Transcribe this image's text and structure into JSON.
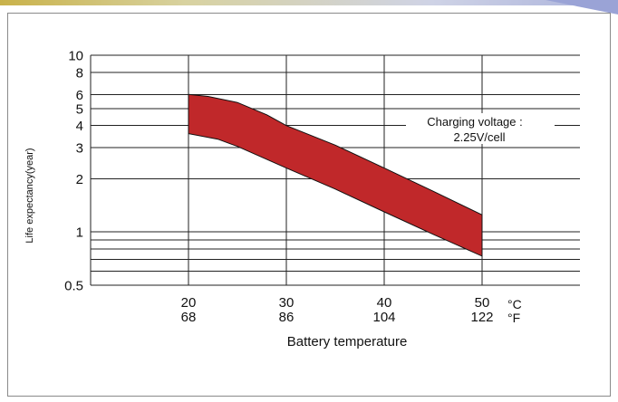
{
  "chart_data": {
    "type": "area",
    "y_scale": "log",
    "ylim": [
      0.5,
      10
    ],
    "xlim": [
      10,
      60
    ],
    "ylabel": "Life expectancy(year)",
    "xlabel": "Battery temperature",
    "y_ticks": [
      {
        "value": 10,
        "label": "10"
      },
      {
        "value": 8,
        "label": "8"
      },
      {
        "value": 6,
        "label": "6"
      },
      {
        "value": 5,
        "label": "5"
      },
      {
        "value": 4,
        "label": "4"
      },
      {
        "value": 3,
        "label": "3"
      },
      {
        "value": 2,
        "label": "2"
      },
      {
        "value": 1,
        "label": "1"
      },
      {
        "value": 0.5,
        "label": "0.5"
      }
    ],
    "y_minor_gridlines": [
      0.9,
      0.8,
      0.7,
      0.6
    ],
    "x_ticks": [
      {
        "value": 20,
        "c_label": "20",
        "f_label": "68"
      },
      {
        "value": 30,
        "c_label": "30",
        "f_label": "86"
      },
      {
        "value": 40,
        "c_label": "40",
        "f_label": "104"
      },
      {
        "value": 50,
        "c_label": "50",
        "f_label": "122"
      }
    ],
    "unit_c": "°C",
    "unit_f": "°F",
    "grid": true,
    "annotation": {
      "line1": "Charging voltage :",
      "line2": "2.25V/cell"
    },
    "band": {
      "color": "#c0282a",
      "upper": [
        [
          20,
          6.0
        ],
        [
          22,
          5.85
        ],
        [
          25,
          5.4
        ],
        [
          28,
          4.6
        ],
        [
          30,
          4.0
        ],
        [
          35,
          3.1
        ],
        [
          40,
          2.3
        ],
        [
          45,
          1.7
        ],
        [
          50,
          1.25
        ]
      ],
      "lower": [
        [
          20,
          3.6
        ],
        [
          23,
          3.35
        ],
        [
          25,
          3.05
        ],
        [
          30,
          2.3
        ],
        [
          35,
          1.75
        ],
        [
          40,
          1.3
        ],
        [
          45,
          0.97
        ],
        [
          50,
          0.73
        ]
      ]
    }
  }
}
